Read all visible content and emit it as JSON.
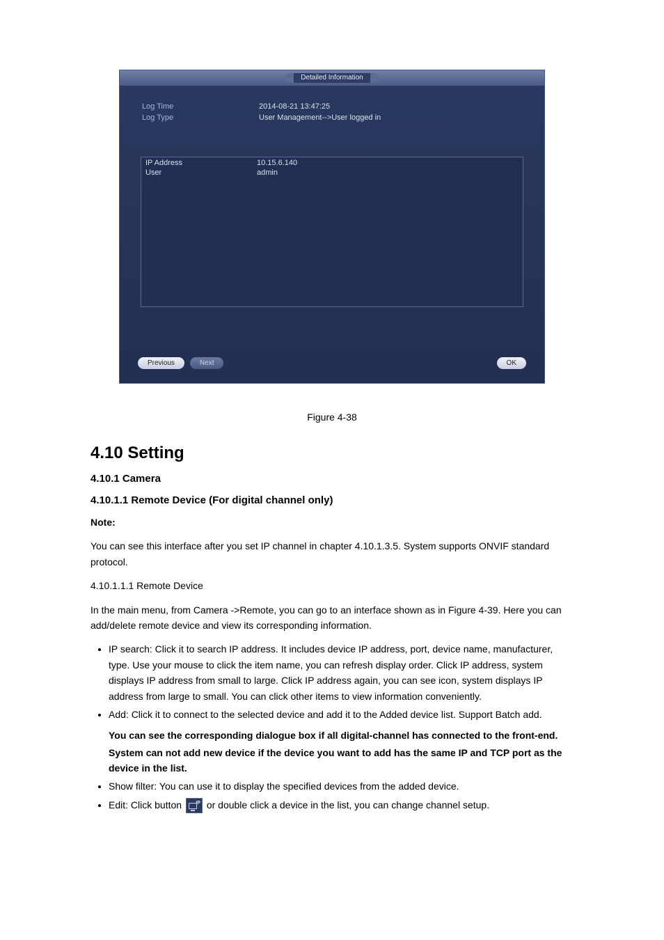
{
  "dialog": {
    "title": "Detailed Information",
    "fields": {
      "log_time_label": "Log Time",
      "log_time_value": "2014-08-21 13:47:25",
      "log_type_label": "Log Type",
      "log_type_value": "User Management-->User logged in",
      "ip_label": "IP Address",
      "ip_value": "10.15.6.140",
      "user_label": "User",
      "user_value": "admin"
    },
    "buttons": {
      "previous": "Previous",
      "next": "Next",
      "ok": "OK"
    }
  },
  "figcap": "Figure 4-38",
  "heading": "4.10 Setting",
  "subhead1": "4.10.1 Camera",
  "subhead2": "4.10.1.1 Remote Device (For digital channel only)",
  "note_label": "Note:",
  "note_text": "You can see this interface after you set IP channel in chapter 4.10.1.3.5. System supports ONVIF standard protocol.",
  "sub_a": "4.10.1.1.1 Remote Device",
  "para_a": "In the main menu, from Camera ->Remote, you can go to an interface shown as in Figure 4-39. Here you can add/delete remote device and view its corresponding information.",
  "bullets": {
    "b1": "IP search: Click it to search IP address. It includes device IP address, port, device name, manufacturer, type. Use your mouse to click the item name, you can refresh display order. Click IP address, system displays IP address from small to large. Click IP address again, you can see icon, system displays IP address from large to small. You can click other items to view information conveniently.",
    "b2_a": "Add: Click it to connect to the selected device and add it to the Added device list. Support Batch add.",
    "b2_warn1": "You can see the corresponding dialogue box if all digital-channel has connected to the front-end.",
    "b2_warn2": "System can not add new device if the device you want to add has the same IP and TCP port as the device in the list.",
    "b3": "Show filter: You can use it to display the specified devices from the added device.",
    "b4_a": "Edit: Click button ",
    "b4_b": " or double click a device in the list, you can change channel setup."
  }
}
